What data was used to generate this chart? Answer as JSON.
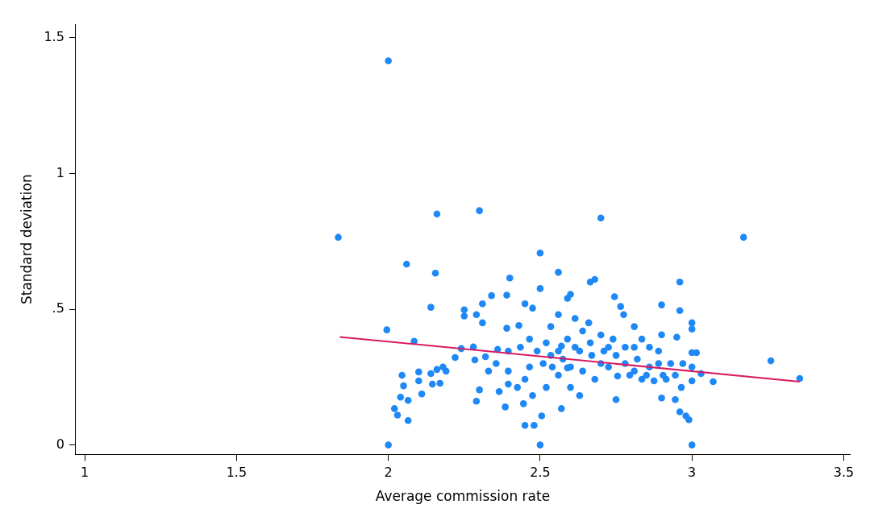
{
  "chart_data": {
    "type": "scatter",
    "xlabel": "Average commission rate",
    "ylabel": "Standard deviation",
    "xlim": [
      0.97,
      3.52
    ],
    "ylim": [
      -0.035,
      1.55
    ],
    "xticks": [
      1,
      1.5,
      2,
      2.5,
      3,
      3.5
    ],
    "yticks": [
      0,
      {
        "value": 0.5,
        "label": ".5"
      },
      1,
      1.5
    ],
    "grid": false,
    "legend": false,
    "marker": "circle",
    "series": [
      {
        "type": "scatter",
        "color": "#1e88f5",
        "x": [
          2.0,
          1.835,
          2.3,
          2.16,
          2.7,
          3.17,
          2.5,
          2.06,
          2.155,
          2.56,
          2.96,
          1.995,
          2.085,
          2.14,
          2.0,
          2.5,
          3.0,
          3.26,
          3.355,
          3.07,
          2.02,
          2.03,
          2.04,
          2.045,
          2.05,
          2.065,
          2.065,
          2.1,
          2.1,
          2.11,
          2.14,
          2.145,
          2.16,
          2.17,
          2.18,
          2.19,
          2.22,
          2.24,
          2.25,
          2.25,
          2.28,
          2.29,
          2.3,
          2.29,
          2.31,
          2.31,
          2.34,
          2.36,
          2.39,
          2.39,
          2.4,
          2.43,
          2.395,
          2.385,
          2.45,
          2.475,
          2.5,
          2.45,
          2.48,
          2.505,
          2.57,
          2.57,
          2.59,
          2.51,
          2.535,
          2.56,
          2.6,
          2.63,
          2.615,
          2.64,
          2.67,
          2.7,
          2.725,
          2.75,
          2.755,
          2.68,
          2.665,
          2.745,
          2.765,
          2.775,
          2.81,
          2.835,
          2.86,
          2.89,
          2.9,
          2.9,
          2.95,
          2.96,
          3.0,
          3.0,
          3.0,
          3.015,
          3.03,
          3.0,
          3.0,
          2.98,
          2.99,
          2.96,
          2.945,
          2.965,
          2.9,
          2.915,
          2.875,
          2.835,
          2.81,
          2.78,
          2.81,
          2.725,
          2.66,
          2.615,
          2.6,
          2.59,
          2.56,
          2.535,
          2.465,
          2.465,
          2.425,
          2.395,
          2.355,
          2.33,
          2.365,
          2.445,
          2.475,
          2.52,
          2.54,
          2.575,
          2.6,
          2.64,
          2.68,
          2.7,
          2.665,
          2.71,
          2.74,
          2.78,
          2.82,
          2.86,
          2.89,
          2.93,
          2.945,
          2.97,
          2.905,
          2.85,
          2.795,
          2.75,
          2.63,
          2.59,
          2.56,
          2.52,
          2.49,
          2.435,
          2.395,
          2.32,
          2.285,
          2.45
        ],
        "values": [
          1.415,
          0.765,
          0.863,
          0.851,
          0.836,
          0.765,
          0.707,
          0.666,
          0.633,
          0.636,
          0.6,
          0.424,
          0.382,
          0.507,
          0.0,
          0.0,
          0.0,
          0.31,
          0.245,
          0.233,
          0.134,
          0.11,
          0.176,
          0.257,
          0.218,
          0.09,
          0.164,
          0.269,
          0.236,
          0.188,
          0.263,
          0.224,
          0.278,
          0.227,
          0.287,
          0.272,
          0.322,
          0.355,
          0.498,
          0.475,
          0.361,
          0.161,
          0.203,
          0.48,
          0.45,
          0.52,
          0.55,
          0.352,
          0.552,
          0.43,
          0.615,
          0.44,
          0.224,
          0.14,
          0.52,
          0.504,
          0.576,
          0.072,
          0.072,
          0.107,
          0.134,
          0.364,
          0.284,
          0.3,
          0.33,
          0.257,
          0.212,
          0.182,
          0.36,
          0.42,
          0.33,
          0.405,
          0.287,
          0.167,
          0.254,
          0.61,
          0.6,
          0.546,
          0.51,
          0.48,
          0.436,
          0.39,
          0.36,
          0.3,
          0.516,
          0.406,
          0.397,
          0.495,
          0.45,
          0.427,
          0.34,
          0.34,
          0.263,
          0.287,
          0.236,
          0.107,
          0.093,
          0.122,
          0.167,
          0.212,
          0.173,
          0.242,
          0.236,
          0.242,
          0.272,
          0.3,
          0.36,
          0.36,
          0.45,
          0.466,
          0.555,
          0.54,
          0.48,
          0.436,
          0.39,
          0.287,
          0.212,
          0.272,
          0.3,
          0.272,
          0.197,
          0.152,
          0.182,
          0.212,
          0.287,
          0.316,
          0.287,
          0.272,
          0.242,
          0.3,
          0.376,
          0.346,
          0.39,
          0.36,
          0.316,
          0.287,
          0.346,
          0.3,
          0.257,
          0.3,
          0.257,
          0.257,
          0.257,
          0.33,
          0.346,
          0.39,
          0.346,
          0.376,
          0.346,
          0.36,
          0.346,
          0.325,
          0.313,
          0.242
        ]
      },
      {
        "type": "line",
        "color": "#d81b60",
        "marker": "none",
        "x": [
          1.84,
          3.355
        ],
        "values": [
          0.398,
          0.233
        ]
      }
    ]
  }
}
